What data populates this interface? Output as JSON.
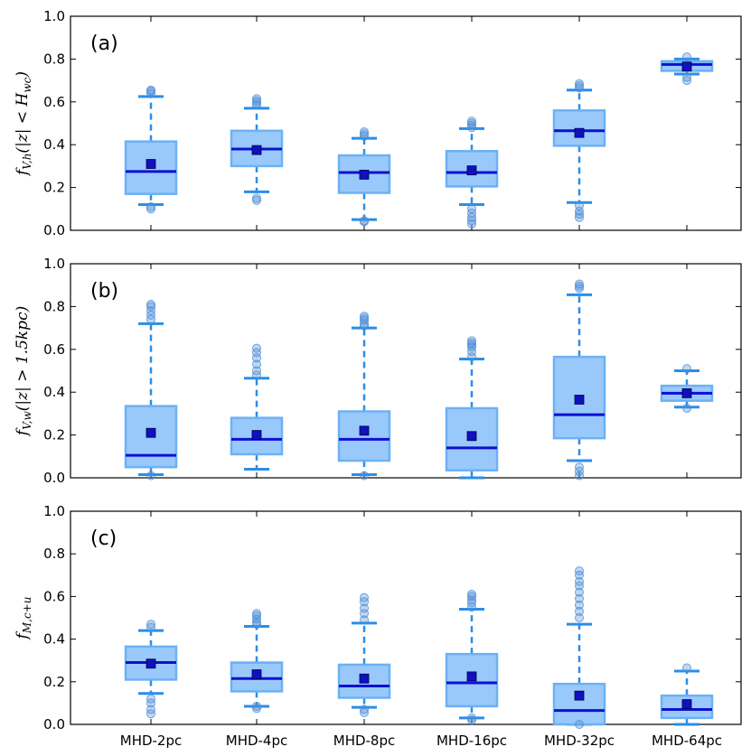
{
  "chart_data": {
    "type": "boxplot",
    "categories": [
      "MHD-2pc",
      "MHD-4pc",
      "MHD-8pc",
      "MHD-16pc",
      "MHD-32pc",
      "MHD-64pc"
    ],
    "ylim": [
      0,
      1.0
    ],
    "yticks": [
      "0.0",
      "0.2",
      "0.4",
      "0.6",
      "0.8",
      "1.0"
    ],
    "colors": {
      "box_fill": "#99c9fb",
      "box_edge": "#6cb1f5",
      "median": "#0f0fd2",
      "mean": "#1010c0",
      "whisker": "#2a8ee8",
      "flier": "#4f8fd6"
    },
    "panels": [
      {
        "label": "(a)",
        "ylabel": "f_{V,h}(|z| < H_{wc})",
        "series": [
          {
            "q1": 0.17,
            "median": 0.275,
            "q3": 0.415,
            "wlo": 0.12,
            "whi": 0.625,
            "mean": 0.31,
            "fliers": [
              0.1,
              0.11,
              0.64,
              0.65,
              0.655
            ]
          },
          {
            "q1": 0.3,
            "median": 0.38,
            "q3": 0.465,
            "wlo": 0.18,
            "whi": 0.57,
            "mean": 0.375,
            "fliers": [
              0.14,
              0.15,
              0.585,
              0.595,
              0.605,
              0.615
            ]
          },
          {
            "q1": 0.175,
            "median": 0.27,
            "q3": 0.35,
            "wlo": 0.05,
            "whi": 0.43,
            "mean": 0.26,
            "fliers": [
              0.04,
              0.045,
              0.44,
              0.45,
              0.46
            ]
          },
          {
            "q1": 0.205,
            "median": 0.27,
            "q3": 0.37,
            "wlo": 0.12,
            "whi": 0.475,
            "mean": 0.28,
            "fliers": [
              0.03,
              0.045,
              0.06,
              0.08,
              0.1,
              0.48,
              0.49,
              0.5,
              0.51
            ]
          },
          {
            "q1": 0.395,
            "median": 0.465,
            "q3": 0.56,
            "wlo": 0.13,
            "whi": 0.655,
            "mean": 0.455,
            "fliers": [
              0.06,
              0.075,
              0.09,
              0.115,
              0.665,
              0.675,
              0.685
            ]
          },
          {
            "q1": 0.745,
            "median": 0.775,
            "q3": 0.79,
            "wlo": 0.73,
            "whi": 0.8,
            "mean": 0.765,
            "fliers": [
              0.7,
              0.715,
              0.81
            ]
          }
        ]
      },
      {
        "label": "(b)",
        "ylabel": "f_{V,w}(|z| > 1.5kpc)",
        "series": [
          {
            "q1": 0.05,
            "median": 0.105,
            "q3": 0.335,
            "wlo": 0.015,
            "whi": 0.72,
            "mean": 0.21,
            "fliers": [
              0.01,
              0.74,
              0.76,
              0.78,
              0.8,
              0.81
            ]
          },
          {
            "q1": 0.11,
            "median": 0.18,
            "q3": 0.28,
            "wlo": 0.04,
            "whi": 0.465,
            "mean": 0.2,
            "fliers": [
              0.48,
              0.5,
              0.53,
              0.56,
              0.585,
              0.605
            ]
          },
          {
            "q1": 0.08,
            "median": 0.18,
            "q3": 0.31,
            "wlo": 0.015,
            "whi": 0.7,
            "mean": 0.22,
            "fliers": [
              0.01,
              0.71,
              0.72,
              0.735,
              0.745,
              0.755
            ]
          },
          {
            "q1": 0.035,
            "median": 0.14,
            "q3": 0.325,
            "wlo": 0.0,
            "whi": 0.555,
            "mean": 0.195,
            "fliers": [
              0.565,
              0.59,
              0.61,
              0.62,
              0.63,
              0.64
            ]
          },
          {
            "q1": 0.185,
            "median": 0.295,
            "q3": 0.565,
            "wlo": 0.08,
            "whi": 0.855,
            "mean": 0.365,
            "fliers": [
              0.01,
              0.03,
              0.05,
              0.885,
              0.895,
              0.905
            ]
          },
          {
            "q1": 0.36,
            "median": 0.395,
            "q3": 0.43,
            "wlo": 0.33,
            "whi": 0.5,
            "mean": 0.395,
            "fliers": [
              0.325,
              0.51
            ]
          }
        ]
      },
      {
        "label": "(c)",
        "ylabel": "f_{M,c+u}",
        "series": [
          {
            "q1": 0.21,
            "median": 0.29,
            "q3": 0.365,
            "wlo": 0.145,
            "whi": 0.44,
            "mean": 0.285,
            "fliers": [
              0.05,
              0.07,
              0.1,
              0.12,
              0.455,
              0.47
            ]
          },
          {
            "q1": 0.155,
            "median": 0.215,
            "q3": 0.29,
            "wlo": 0.085,
            "whi": 0.46,
            "mean": 0.235,
            "fliers": [
              0.075,
              0.085,
              0.47,
              0.48,
              0.495,
              0.51,
              0.52
            ]
          },
          {
            "q1": 0.125,
            "median": 0.18,
            "q3": 0.28,
            "wlo": 0.08,
            "whi": 0.475,
            "mean": 0.215,
            "fliers": [
              0.055,
              0.07,
              0.49,
              0.52,
              0.545,
              0.575,
              0.595
            ]
          },
          {
            "q1": 0.085,
            "median": 0.195,
            "q3": 0.33,
            "wlo": 0.03,
            "whi": 0.54,
            "mean": 0.225,
            "fliers": [
              0.02,
              0.03,
              0.55,
              0.57,
              0.585,
              0.6,
              0.61
            ]
          },
          {
            "q1": 0.0,
            "median": 0.065,
            "q3": 0.19,
            "wlo": 0.0,
            "whi": 0.47,
            "mean": 0.135,
            "fliers": [
              0.0,
              0.5,
              0.53,
              0.56,
              0.59,
              0.62,
              0.65,
              0.67,
              0.7,
              0.72
            ]
          },
          {
            "q1": 0.03,
            "median": 0.07,
            "q3": 0.135,
            "wlo": 0.0,
            "whi": 0.25,
            "mean": 0.095,
            "fliers": [
              0.265
            ]
          }
        ]
      }
    ]
  }
}
